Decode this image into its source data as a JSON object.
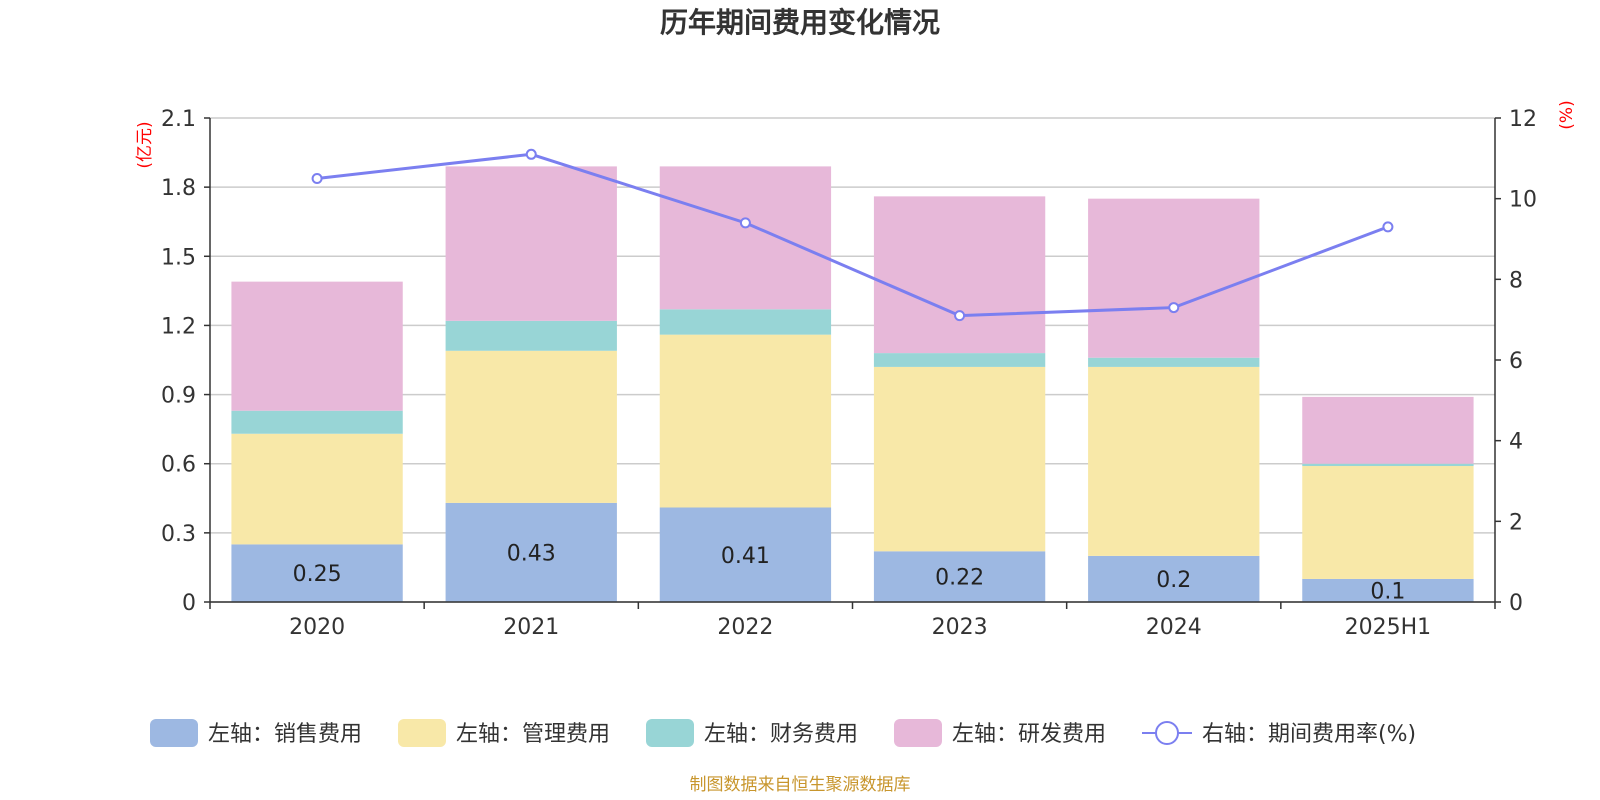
{
  "chart_data": {
    "type": "bar",
    "title": "历年期间费用变化情况",
    "categories": [
      "2020",
      "2021",
      "2022",
      "2023",
      "2024",
      "2025H1"
    ],
    "stacked": true,
    "left_axis": {
      "unit_label": "(亿元)",
      "ylim": [
        0,
        2.1
      ],
      "ticks": [
        "0",
        "0.3",
        "0.6",
        "0.9",
        "1.2",
        "1.5",
        "1.8",
        "2.1"
      ]
    },
    "right_axis": {
      "unit_label": "(%)",
      "ylim": [
        0,
        12
      ],
      "ticks": [
        "0",
        "2",
        "4",
        "6",
        "8",
        "10",
        "12"
      ]
    },
    "series": [
      {
        "name": "左轴：销售费用",
        "axis": "left",
        "kind": "bar",
        "color": "#9db8e2",
        "values": [
          0.25,
          0.43,
          0.41,
          0.22,
          0.2,
          0.1
        ],
        "labels": [
          "0.25",
          "0.43",
          "0.41",
          "0.22",
          "0.2",
          "0.1"
        ]
      },
      {
        "name": "左轴：管理费用",
        "axis": "left",
        "kind": "bar",
        "color": "#f8e8a8",
        "values": [
          0.48,
          0.66,
          0.75,
          0.8,
          0.82,
          0.49
        ]
      },
      {
        "name": "左轴：财务费用",
        "axis": "left",
        "kind": "bar",
        "color": "#98d5d6",
        "values": [
          0.1,
          0.13,
          0.11,
          0.06,
          0.04,
          0.01
        ]
      },
      {
        "name": "左轴：研发费用",
        "axis": "left",
        "kind": "bar",
        "color": "#e7b8d9",
        "values": [
          0.56,
          0.67,
          0.62,
          0.68,
          0.69,
          0.29
        ]
      },
      {
        "name": "右轴：期间费用率(%)",
        "axis": "right",
        "kind": "line",
        "color": "#7b7ff0",
        "values": [
          10.5,
          11.1,
          9.4,
          7.1,
          7.3,
          9.3
        ]
      }
    ],
    "grid": true,
    "legend_position": "bottom"
  },
  "source_note": "制图数据来自恒生聚源数据库"
}
